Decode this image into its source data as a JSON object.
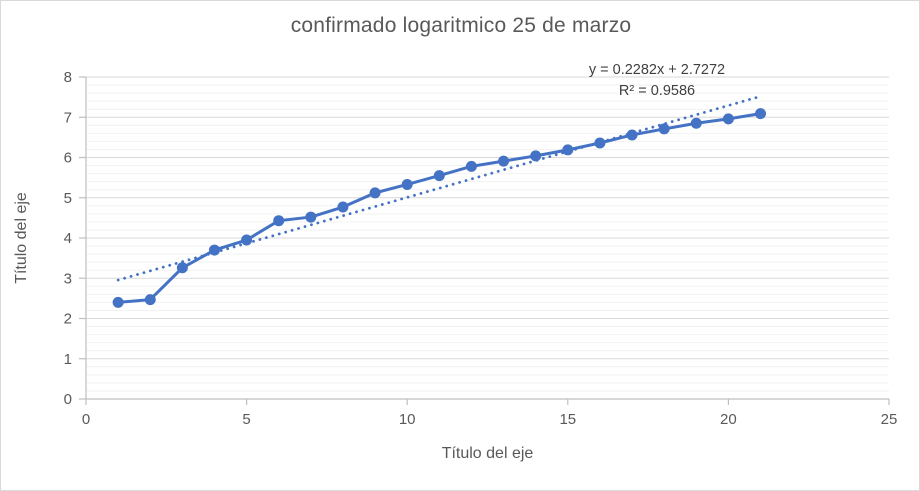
{
  "chart_data": {
    "type": "line",
    "title": "confirmado logaritmico 25 de marzo",
    "xlabel": "Título del eje",
    "ylabel": "Título del eje",
    "x": [
      1,
      2,
      3,
      4,
      5,
      6,
      7,
      8,
      9,
      10,
      11,
      12,
      13,
      14,
      15,
      16,
      17,
      18,
      19,
      20,
      21
    ],
    "y": [
      2.4,
      2.47,
      3.26,
      3.7,
      3.95,
      4.43,
      4.52,
      4.77,
      5.12,
      5.33,
      5.55,
      5.78,
      5.91,
      6.04,
      6.19,
      6.36,
      6.56,
      6.71,
      6.85,
      6.96,
      7.09
    ],
    "xlim": [
      0,
      25
    ],
    "ylim": [
      0,
      8
    ],
    "x_ticks": [
      0,
      5,
      10,
      15,
      20,
      25
    ],
    "y_ticks": [
      0,
      1,
      2,
      3,
      4,
      5,
      6,
      7,
      8
    ],
    "y_minor_unit": 0.2,
    "grid": "horizontal major+minor",
    "legend": "none",
    "marker": "circle",
    "trendline": {
      "type": "linear",
      "slope": 0.2282,
      "intercept": 2.7272,
      "r2": 0.9586,
      "equation_label": "y = 0.2282x + 2.7272",
      "r2_label": "R² = 0.9586",
      "x_start": 1,
      "x_end": 21,
      "style": "dotted"
    },
    "colors": {
      "series": "#4472C4",
      "trendline": "#4472C4",
      "title_text": "#595959",
      "axis_text": "#595959",
      "label_text": "#404040",
      "major_grid": "#D9D9D9",
      "minor_grid": "#F2F2F2",
      "axis_line": "#BFBFBF",
      "background": "#FFFFFF",
      "border": "#D9D9D9"
    }
  }
}
